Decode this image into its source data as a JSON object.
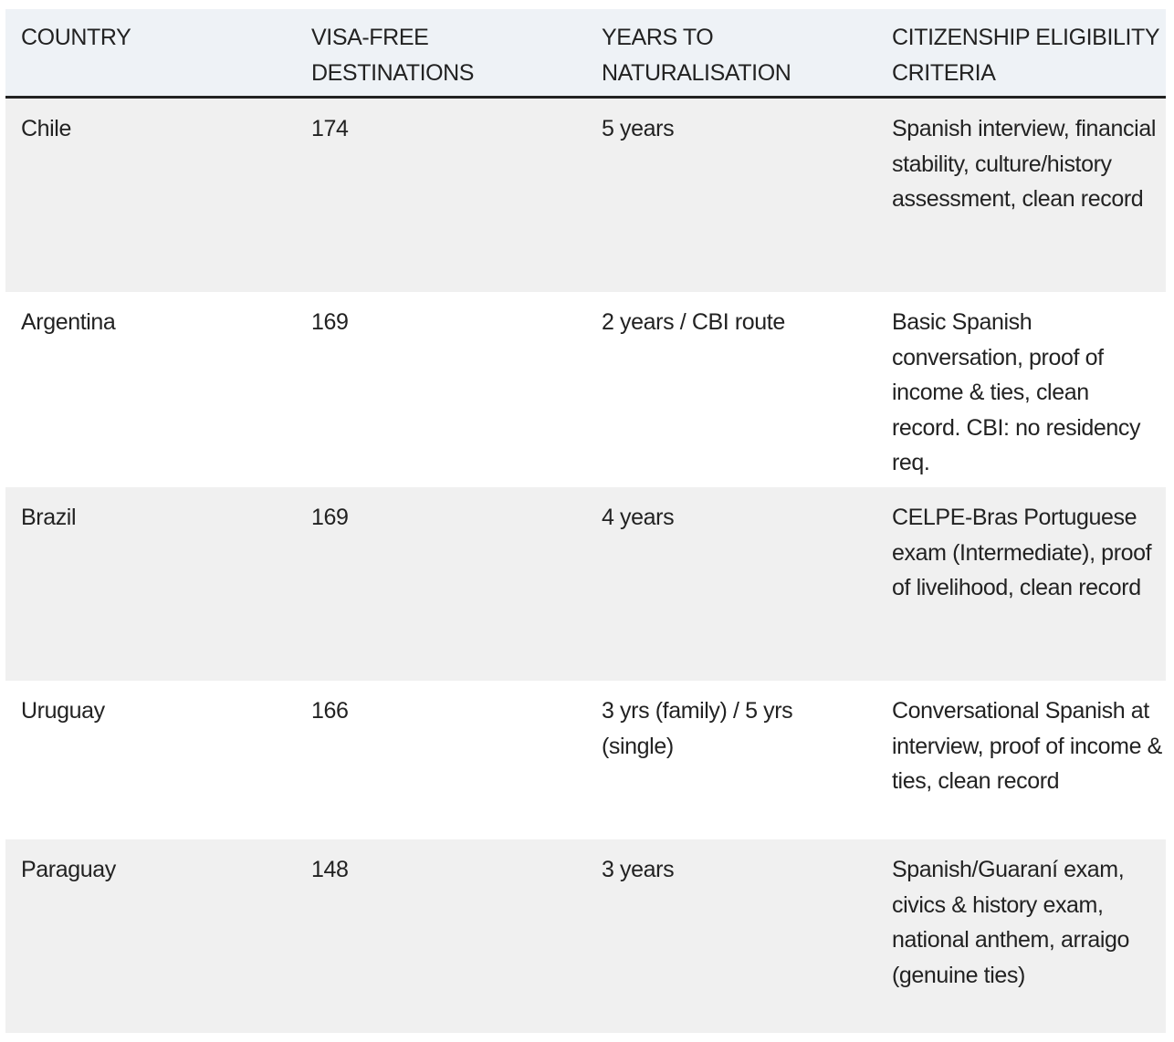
{
  "table": {
    "columns": [
      "COUNTRY",
      "VISA-FREE DESTINATIONS",
      "YEARS TO NATURALISATION",
      "CITIZENSHIP ELIGIBILITY CRITERIA"
    ],
    "rows": [
      [
        "Chile",
        "174",
        "5 years",
        "Spanish interview, financial stability, culture/history assessment, clean record"
      ],
      [
        "Argentina",
        "169",
        "2 years / CBI route",
        "Basic Spanish conversation, proof of income & ties, clean record. CBI: no residency req."
      ],
      [
        "Brazil",
        "169",
        "4 years",
        "CELPE-Bras Portuguese exam (Intermediate), proof of livelihood, clean record"
      ],
      [
        "Uruguay",
        "166",
        "3 yrs (family) / 5 yrs (single)",
        "Conversational Spanish at interview, proof of income & ties, clean record"
      ],
      [
        "Paraguay",
        "148",
        "3 years",
        "Spanish/Guaraní exam, civics & history exam, national anthem, arraigo (genuine ties)"
      ]
    ]
  }
}
